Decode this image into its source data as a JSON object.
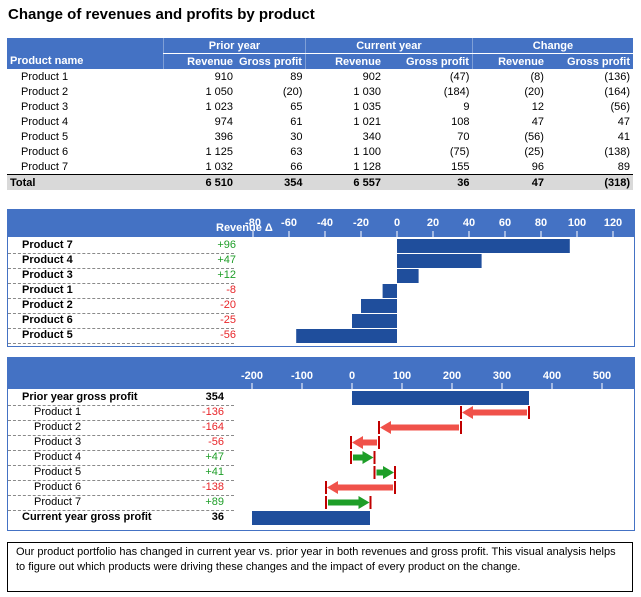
{
  "title": "Change of revenues and profits by product",
  "table": {
    "group_headers": [
      "Prior year",
      "Current year",
      "Change"
    ],
    "columns": [
      "Product name",
      "Revenue",
      "Gross profit",
      "Revenue",
      "Gross profit",
      "Revenue",
      "Gross profit"
    ],
    "rows": [
      [
        "Product 1",
        "910",
        "89",
        "902",
        "(47)",
        "(8)",
        "(136)"
      ],
      [
        "Product 2",
        "1 050",
        "(20)",
        "1 030",
        "(184)",
        "(20)",
        "(164)"
      ],
      [
        "Product 3",
        "1 023",
        "65",
        "1 035",
        "9",
        "12",
        "(56)"
      ],
      [
        "Product 4",
        "974",
        "61",
        "1 021",
        "108",
        "47",
        "47"
      ],
      [
        "Product 5",
        "396",
        "30",
        "340",
        "70",
        "(56)",
        "41"
      ],
      [
        "Product 6",
        "1 125",
        "63",
        "1 100",
        "(75)",
        "(25)",
        "(138)"
      ],
      [
        "Product 7",
        "1 032",
        "66",
        "1 128",
        "155",
        "96",
        "89"
      ]
    ],
    "total": [
      "Total",
      "6 510",
      "354",
      "6 557",
      "36",
      "47",
      "(318)"
    ]
  },
  "chart_data": [
    {
      "type": "bar",
      "orientation": "horizontal",
      "header_label": "Revenue Δ",
      "categories": [
        "Product 7",
        "Product 4",
        "Product 3",
        "Product 1",
        "Product 2",
        "Product 6",
        "Product 5"
      ],
      "value_labels": [
        "+96",
        "+47",
        "+12",
        "-8",
        "-20",
        "-25",
        "-56"
      ],
      "values": [
        96,
        47,
        12,
        -8,
        -20,
        -25,
        -56
      ],
      "xlim": [
        -100,
        130
      ],
      "ticks": [
        -80,
        -60,
        -40,
        -20,
        0,
        20,
        40,
        60,
        80,
        100,
        120
      ],
      "tick_labels": [
        "-80",
        "-60",
        "-40",
        "-20",
        "0",
        "20",
        "40",
        "60",
        "80",
        "100",
        "120"
      ],
      "bar_color": "#1f4e9c",
      "axis_position": "top"
    },
    {
      "type": "waterfall",
      "orientation": "horizontal",
      "start_label": "Prior year gross profit",
      "start_value": 354,
      "start_value_label": "354",
      "categories": [
        "Product 1",
        "Product 2",
        "Product 3",
        "Product 4",
        "Product 5",
        "Product 6",
        "Product 7"
      ],
      "value_labels": [
        "-136",
        "-164",
        "-56",
        "+47",
        "+41",
        "-138",
        "+89"
      ],
      "values": [
        -136,
        -164,
        -56,
        47,
        41,
        -138,
        89
      ],
      "end_label": "Current year gross profit",
      "end_value": 36,
      "end_value_label": "36",
      "xlim": [
        -215,
        555
      ],
      "ticks": [
        -200,
        -100,
        0,
        100,
        200,
        300,
        400,
        500
      ],
      "tick_labels": [
        "-200",
        "-100",
        "0",
        "100",
        "200",
        "300",
        "400",
        "500"
      ],
      "colors": {
        "total": "#1f4e9c",
        "negative": "#f0524a",
        "positive": "#1e9e28"
      },
      "axis_position": "top"
    }
  ],
  "note": "Our product portfolio has changed in current year vs. prior year in both revenues and gross profit. This visual analysis helps to figure out which products were driving these changes and the impact of every product on the change."
}
